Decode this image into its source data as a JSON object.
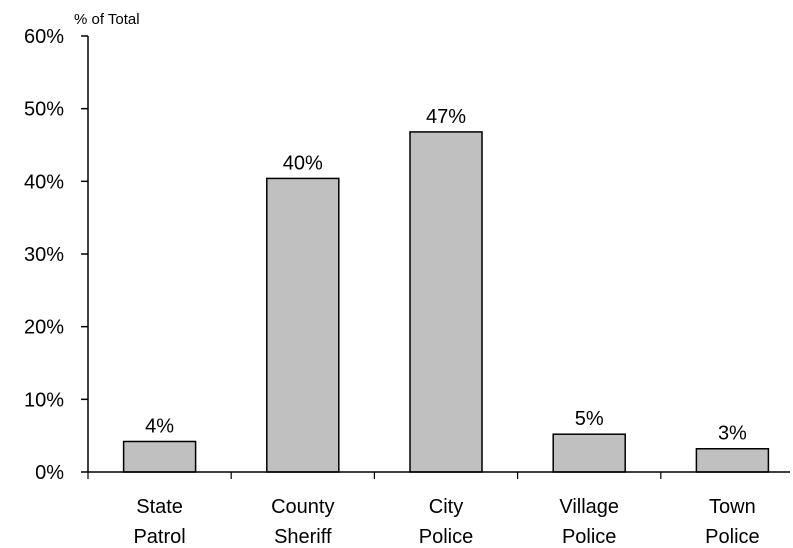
{
  "chart_data": {
    "type": "bar",
    "title": "",
    "ylabel": "% of Total",
    "xlabel": "",
    "categories": [
      [
        "State",
        "Patrol"
      ],
      [
        "County",
        "Sheriff"
      ],
      [
        "City",
        "Police"
      ],
      [
        "Village",
        "Police"
      ],
      [
        "Town",
        "Police"
      ]
    ],
    "values": [
      4,
      40,
      47,
      5,
      3
    ],
    "plotted_values": [
      4.2,
      40.4,
      46.8,
      5.2,
      3.2
    ],
    "data_labels": [
      "4%",
      "40%",
      "47%",
      "5%",
      "3%"
    ],
    "yticks": [
      0,
      10,
      20,
      30,
      40,
      50,
      60
    ],
    "ytick_labels": [
      "0%",
      "10%",
      "20%",
      "30%",
      "40%",
      "50%",
      "60%"
    ],
    "ylim": [
      0,
      60
    ],
    "grid": false,
    "legend": "none",
    "bar_color": "#c0c0c0",
    "bar_edge_color": "#000000"
  }
}
